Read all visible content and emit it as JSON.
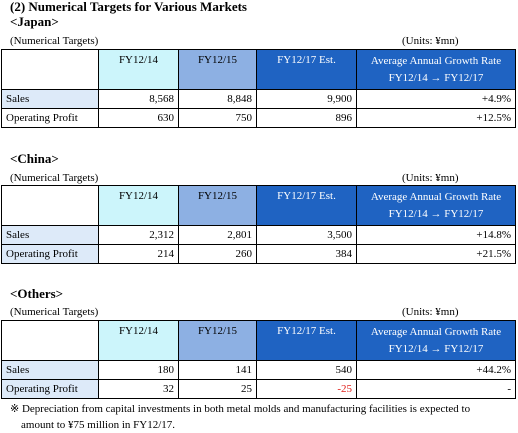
{
  "title": "(2) Numerical Targets for Various Markets",
  "subhead_left": "(Numerical Targets)",
  "subhead_right": "(Units:  ¥mn)",
  "columns": {
    "fy14": "FY12/14",
    "fy15": "FY12/15",
    "fy17": "FY12/17 Est.",
    "rate_line1": "Average Annual Growth Rate",
    "rate_line2": "FY12/14 →  FY12/17"
  },
  "row_labels": {
    "sales": "Sales",
    "op": "Operating Profit"
  },
  "markets": [
    {
      "heading": "<Japan>",
      "sales": [
        "8,568",
        "8,848",
        "9,900",
        "+4.9%"
      ],
      "op": [
        "630",
        "750",
        "896",
        "+12.5%"
      ]
    },
    {
      "heading": "<China>",
      "sales": [
        "2,312",
        "2,801",
        "3,500",
        "+14.8%"
      ],
      "op": [
        "214",
        "260",
        "384",
        "+21.5%"
      ]
    },
    {
      "heading": "<Others>",
      "sales": [
        "180",
        "141",
        "540",
        "+44.2%"
      ],
      "op": [
        "32",
        "25",
        "-25",
        "-"
      ]
    }
  ],
  "colors": {
    "fy14_header": "#ccf5fb",
    "fy15_header": "#8db0e3",
    "fy17_header": "#1f63c2",
    "sales_label": "#ddeaf9",
    "negative": "#e0201b"
  },
  "note_line1": "※ Depreciation from capital investments in both metal molds and manufacturing facilities  is expected to",
  "note_line2": "amount to ¥75 million in FY12/17."
}
